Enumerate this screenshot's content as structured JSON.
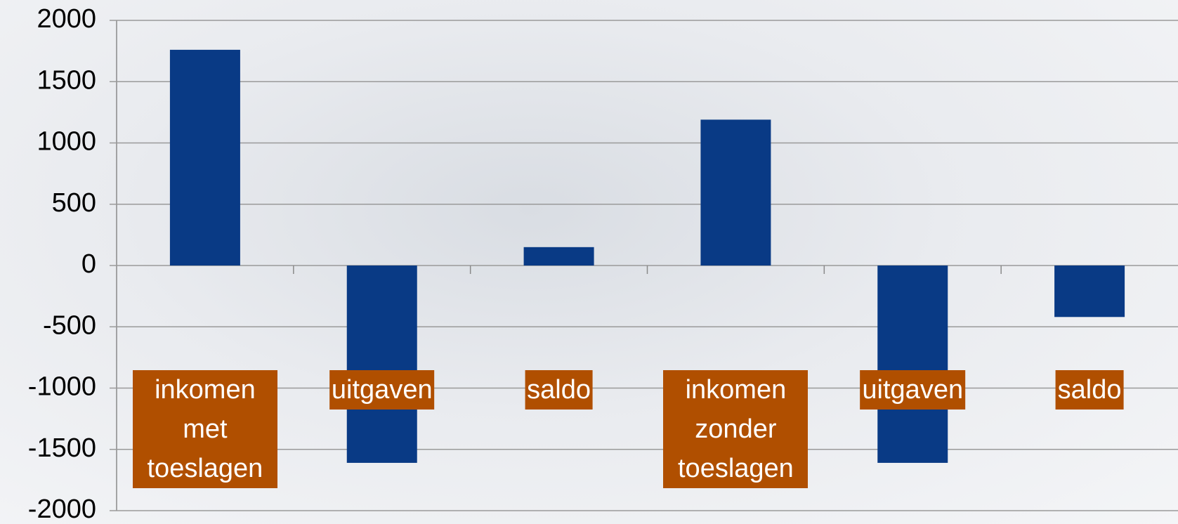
{
  "chart_data": {
    "type": "bar",
    "categories": [
      "inkomen met toeslagen",
      "uitgaven",
      "saldo",
      "inkomen zonder toeslagen",
      "uitgaven",
      "saldo"
    ],
    "values": [
      1760,
      -1610,
      150,
      1190,
      -1610,
      -420
    ],
    "color": "#093a85",
    "label_color": "#b04f00",
    "ylim": [
      -2000,
      2000
    ],
    "yticks": [
      -2000,
      -1500,
      -1000,
      -500,
      0,
      500,
      1000,
      1500,
      2000
    ],
    "grid": true
  }
}
